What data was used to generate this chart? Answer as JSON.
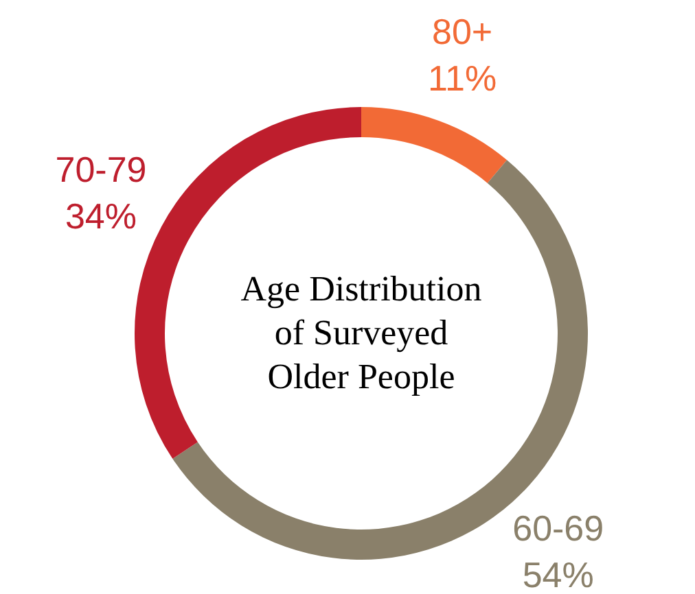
{
  "chart_data": {
    "type": "donut",
    "title": "Age Distribution of Surveyed Older People",
    "categories": [
      "80+",
      "60-69",
      "70-79"
    ],
    "values": [
      11,
      54,
      34
    ],
    "colors": [
      "#f26a36",
      "#8a806a",
      "#be1e2d"
    ],
    "value_labels": [
      "11%",
      "54%",
      "34%"
    ]
  }
}
